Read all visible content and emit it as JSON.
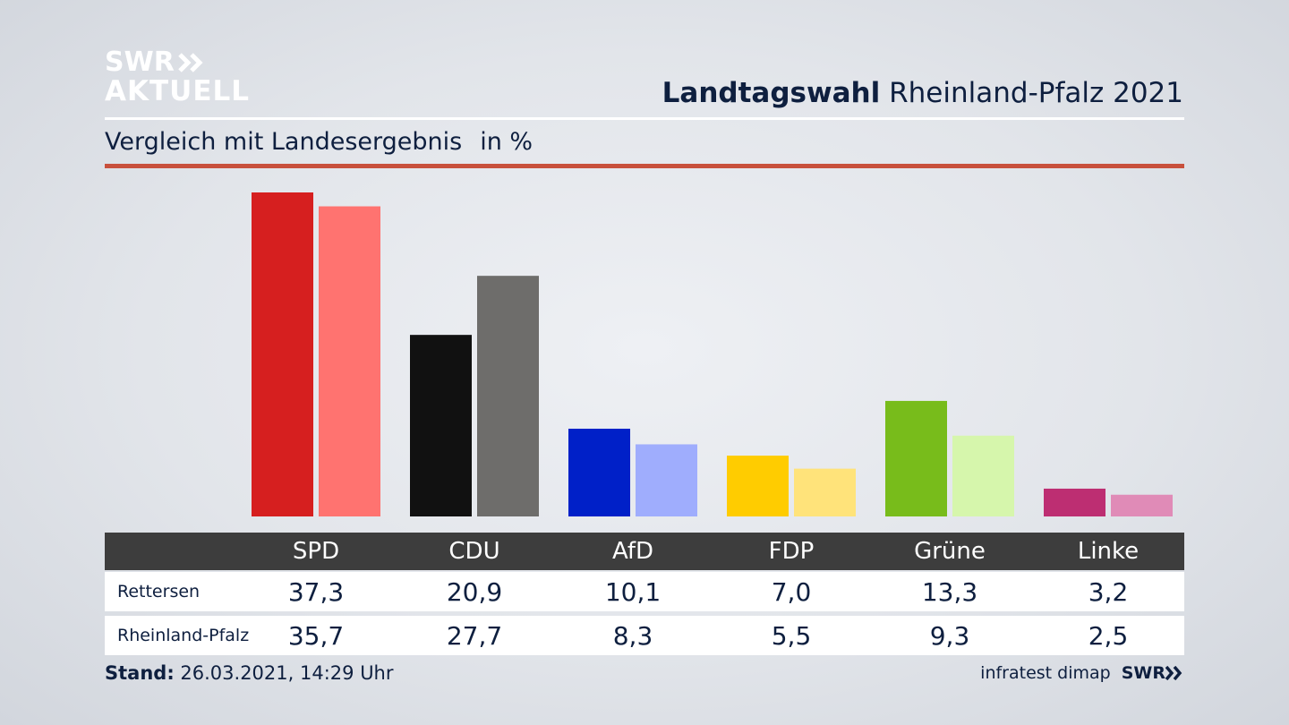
{
  "logo": {
    "line1": "SWR",
    "line2": "AKTUELL"
  },
  "header": {
    "title_bold": "Landtagswahl",
    "title_rest": "Rheinland-Pfalz 2021"
  },
  "subheader": {
    "text": "Vergleich mit Landesergebnis",
    "unit": "in %"
  },
  "chart_data": {
    "type": "bar",
    "categories": [
      "SPD",
      "CDU",
      "AfD",
      "FDP",
      "Grüne",
      "Linke"
    ],
    "series": [
      {
        "name": "Rettersen",
        "values": [
          37.3,
          20.9,
          10.1,
          7.0,
          13.3,
          3.2
        ],
        "display": [
          "37,3",
          "20,9",
          "10,1",
          "7,0",
          "13,3",
          "3,2"
        ]
      },
      {
        "name": "Rheinland-Pfalz",
        "values": [
          35.7,
          27.7,
          8.3,
          5.5,
          9.3,
          2.5
        ],
        "display": [
          "35,7",
          "27,7",
          "8,3",
          "5,5",
          "9,3",
          "2,5"
        ]
      }
    ],
    "colors": [
      [
        "#d61f1f",
        "#ff7370"
      ],
      [
        "#111111",
        "#6e6d6b"
      ],
      [
        "#0020c8",
        "#9fadfd"
      ],
      [
        "#ffcc00",
        "#ffe37a"
      ],
      [
        "#78bc1b",
        "#d6f6ac"
      ],
      [
        "#bd2e72",
        "#e08bb7"
      ]
    ],
    "ylim": [
      0,
      37.3
    ]
  },
  "footer": {
    "stand_label": "Stand:",
    "stand_value": "26.03.2021, 14:29 Uhr",
    "source": "infratest dimap",
    "brand": "SWR"
  }
}
